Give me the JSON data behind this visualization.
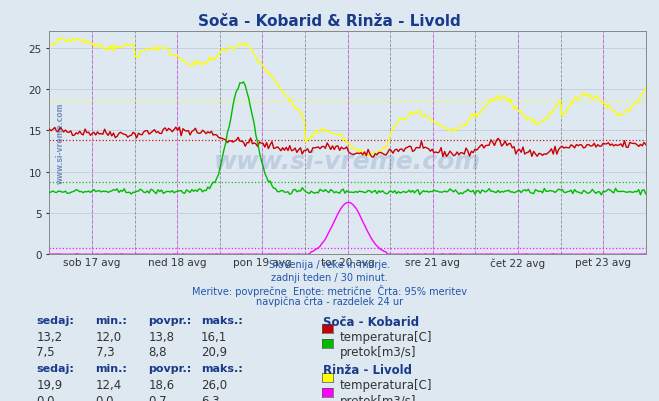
{
  "title": "Soča - Kobarid & Rinža - Livold",
  "title_color": "#1a3a8a",
  "background_color": "#dde8f0",
  "plot_bg_color": "#dde8f0",
  "x_labels": [
    "sob 17 avg",
    "ned 18 avg",
    "pon 19 avg",
    "tor 20 avg",
    "sre 21 avg",
    "čet 22 avg",
    "pet 23 avg"
  ],
  "n_points": 336,
  "days": 7,
  "ylim": [
    0,
    27
  ],
  "yticks": [
    0,
    5,
    10,
    15,
    20,
    25
  ],
  "text_lines": [
    "Slovenija / reke in morje.",
    "zadnji teden / 30 minut.",
    "Meritve: povprečne  Enote: metrične  Črta: 95% meritev",
    "navpična črta - razdelek 24 ur"
  ],
  "soca_stats_header": [
    "sedaj:",
    "min.:",
    "povpr.:",
    "maks.:",
    "Soča - Kobarid"
  ],
  "soca_row1": [
    "13,2",
    "12,0",
    "13,8",
    "16,1",
    "temperatura[C]",
    "#cc0000"
  ],
  "soca_row2": [
    "7,5",
    "7,3",
    "8,8",
    "20,9",
    "pretok[m3/s]",
    "#00cc00"
  ],
  "rinza_stats_header": [
    "sedaj:",
    "min.:",
    "povpr.:",
    "maks.:",
    "Rinža - Livold"
  ],
  "rinza_row1": [
    "19,9",
    "12,4",
    "18,6",
    "26,0",
    "temperatura[C]",
    "#ffff00"
  ],
  "rinza_row2": [
    "0,0",
    "0,0",
    "0,7",
    "6,3",
    "pretok[m3/s]",
    "#ff00ff"
  ],
  "color_red": "#cc0000",
  "color_green": "#00bb00",
  "color_yellow": "#ffff00",
  "color_magenta": "#ff00ff",
  "mean_red": 13.8,
  "mean_green": 8.8,
  "mean_yellow": 18.6,
  "mean_magenta": 0.7,
  "grid_color": "#aaaacc",
  "vline_midnight": "#555555",
  "vline_noon": "#cc44cc"
}
